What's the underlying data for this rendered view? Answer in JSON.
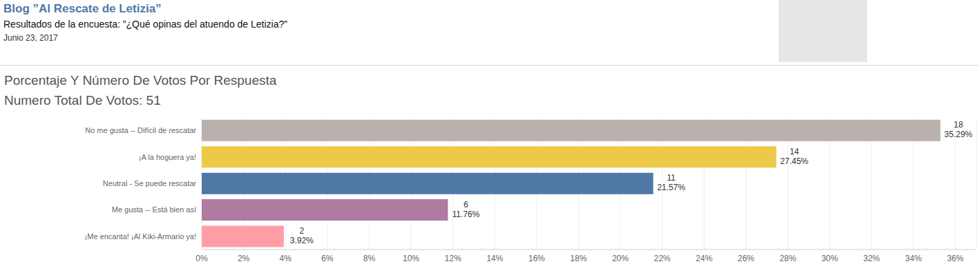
{
  "header": {
    "blog": "Blog ”Al Rescate de Letizia”",
    "survey": "Resultados de la encuesta: ”¿Qué opinas del atuendo de Letizia?”",
    "date": "Junio 23, 2017"
  },
  "chart_data": {
    "type": "bar",
    "orientation": "horizontal",
    "title": "Porcentaje Y Número De Votos Por Respuesta",
    "subtitle": "Numero Total De Votos: 51",
    "categories": [
      "No me gusta -- Difícil de rescatar",
      "¡A la hoguera ya!",
      "Neutral - Se puede rescatar",
      "Me gusta -- Está bien así",
      "¡Me encanta! ¡Al Kiki-Armario ya!"
    ],
    "values": [
      35.29,
      27.45,
      21.57,
      11.76,
      3.92
    ],
    "value_labels": [
      "35.29%",
      "27.45%",
      "21.57%",
      "11.76%",
      "3.92%"
    ],
    "votes": [
      18,
      14,
      11,
      6,
      2
    ],
    "colors": [
      "#bab0ac",
      "#edc948",
      "#4e79a7",
      "#b07aa1",
      "#ff9da7"
    ],
    "xlim": [
      0,
      37
    ],
    "xticks": [
      {
        "value": 0,
        "label": "0%"
      },
      {
        "value": 2,
        "label": "2%"
      },
      {
        "value": 4,
        "label": "4%"
      },
      {
        "value": 6,
        "label": "6%"
      },
      {
        "value": 8,
        "label": "8%"
      },
      {
        "value": 10,
        "label": "10%"
      },
      {
        "value": 12,
        "label": "12%"
      },
      {
        "value": 14,
        "label": "14%"
      },
      {
        "value": 16,
        "label": "16%"
      },
      {
        "value": 18,
        "label": "18%"
      },
      {
        "value": 20,
        "label": "20%"
      },
      {
        "value": 22,
        "label": "22%"
      },
      {
        "value": 24,
        "label": "24%"
      },
      {
        "value": 26,
        "label": "26%"
      },
      {
        "value": 28,
        "label": "28%"
      },
      {
        "value": 30,
        "label": "30%"
      },
      {
        "value": 32,
        "label": "32%"
      },
      {
        "value": 34,
        "label": "34%"
      },
      {
        "value": 36,
        "label": "36%"
      }
    ],
    "grid": true,
    "data_labels": true
  }
}
